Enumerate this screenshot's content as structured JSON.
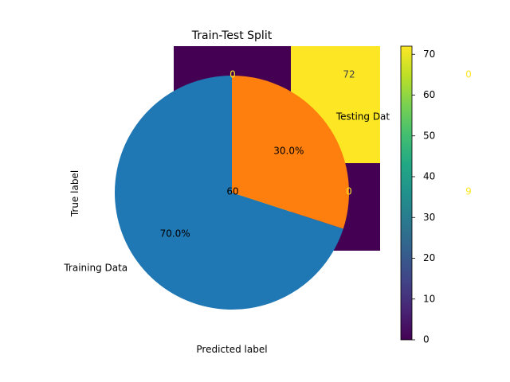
{
  "chart_data": [
    {
      "type": "heatmap",
      "xlabel": "Predicted label",
      "ylabel": "True label",
      "rows": [
        [
          0,
          72,
          0
        ],
        [
          60,
          0,
          9
        ]
      ],
      "cell_labels": [
        [
          "0",
          "72",
          "0"
        ],
        [
          "60",
          "0",
          "9"
        ]
      ],
      "colorbar": {
        "range": [
          0,
          72
        ],
        "ticks": [
          0,
          10,
          20,
          30,
          40,
          50,
          60,
          70
        ],
        "tick_labels": [
          "0",
          "10",
          "20",
          "30",
          "40",
          "50",
          "60",
          "70"
        ]
      }
    },
    {
      "type": "pie",
      "title": "Train-Test Split",
      "labels": [
        "Training Data",
        "Testing Data"
      ],
      "display_labels": [
        "Training Data",
        "Testing Dat"
      ],
      "values": [
        70,
        30
      ],
      "pct_labels": [
        "70.0%",
        "30.0%"
      ],
      "colors": [
        "#1f77b4",
        "#ff7f0e"
      ],
      "start_angle_deg": 90,
      "direction": "clockwise-order-counterclockwise"
    }
  ],
  "colors": {
    "viridis_low": "#440154",
    "viridis_high": "#fde725",
    "pie_training": "#1f77b4",
    "pie_testing": "#ff7f0e",
    "annotation_yellow": "#fde725"
  }
}
